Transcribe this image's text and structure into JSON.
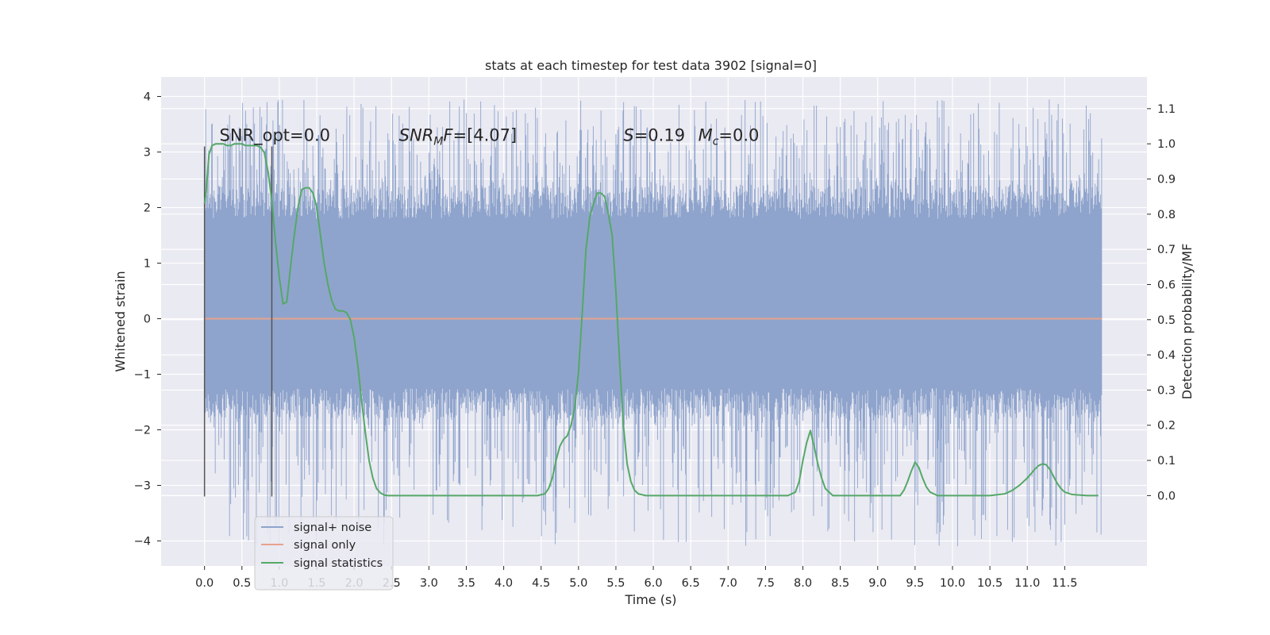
{
  "chart_data": {
    "type": "line",
    "title": "stats at each timestep for test data 3902 [signal=0]",
    "xlabel": "Time (s)",
    "ylabel": "Whitened strain",
    "ylabel_right": "Detection probability/MF",
    "xlim": [
      -0.58,
      12.6
    ],
    "ylim": [
      -4.45,
      4.35
    ],
    "ylim_right": [
      -0.2,
      1.19
    ],
    "x_ticks": [
      0.0,
      0.5,
      1.0,
      1.5,
      2.0,
      2.5,
      3.0,
      3.5,
      4.0,
      4.5,
      5.0,
      5.5,
      6.0,
      6.5,
      7.0,
      7.5,
      8.0,
      8.5,
      9.0,
      9.5,
      10.0,
      10.5,
      11.0,
      11.5
    ],
    "x_tick_labels": [
      "0.0",
      "0.5",
      "1.0",
      "1.5",
      "2.0",
      "2.5",
      "3.0",
      "3.5",
      "4.0",
      "4.5",
      "5.0",
      "5.5",
      "6.0",
      "6.5",
      "7.0",
      "7.5",
      "8.0",
      "8.5",
      "9.0",
      "9.5",
      "10.0",
      "10.5",
      "11.0",
      "11.5"
    ],
    "y_ticks": [
      -4,
      -3,
      -2,
      -1,
      0,
      1,
      2,
      3,
      4
    ],
    "y_tick_labels": [
      "−4",
      "−3",
      "−2",
      "−1",
      "0",
      "1",
      "2",
      "3",
      "4"
    ],
    "y_ticks_right": [
      0.0,
      0.1,
      0.2,
      0.3,
      0.4,
      0.5,
      0.6,
      0.7,
      0.8,
      0.9,
      1.0,
      1.1
    ],
    "y_tick_labels_right": [
      "0.0",
      "0.1",
      "0.2",
      "0.3",
      "0.4",
      "0.5",
      "0.6",
      "0.7",
      "0.8",
      "0.9",
      "1.0",
      "1.1"
    ],
    "grid": true,
    "legend_position": "lower-left",
    "colors": {
      "background": "#eaeaf2",
      "grid": "#ffffff",
      "noise": "#8fa4cc",
      "signal_only": "#e6a38d",
      "statistics": "#55a868",
      "marker_lines": "#555555"
    },
    "series": [
      {
        "name": "signal+ noise",
        "style": "noise-band",
        "x_range": [
          0.0,
          12.0
        ],
        "core_band": [
          -1.25,
          1.8
        ],
        "spike_range": [
          -4.1,
          3.95
        ]
      },
      {
        "name": "signal only",
        "x": [
          0.0,
          12.0
        ],
        "y": [
          0.0,
          0.0
        ]
      },
      {
        "name": "signal statistics",
        "axis": "right",
        "x": [
          0.0,
          0.02,
          0.06,
          0.1,
          0.15,
          0.2,
          0.25,
          0.3,
          0.35,
          0.4,
          0.45,
          0.5,
          0.55,
          0.6,
          0.65,
          0.7,
          0.75,
          0.8,
          0.85,
          0.9,
          0.95,
          1.0,
          1.05,
          1.1,
          1.15,
          1.2,
          1.25,
          1.3,
          1.35,
          1.4,
          1.45,
          1.5,
          1.55,
          1.6,
          1.65,
          1.7,
          1.75,
          1.8,
          1.85,
          1.9,
          1.95,
          2.0,
          2.05,
          2.1,
          2.15,
          2.2,
          2.25,
          2.3,
          2.35,
          2.4,
          2.45,
          2.5,
          2.6,
          2.8,
          3.0,
          3.5,
          4.0,
          4.3,
          4.45,
          4.55,
          4.6,
          4.65,
          4.7,
          4.75,
          4.8,
          4.85,
          4.9,
          4.95,
          5.0,
          5.05,
          5.1,
          5.15,
          5.2,
          5.25,
          5.3,
          5.35,
          5.4,
          5.45,
          5.5,
          5.55,
          5.6,
          5.65,
          5.7,
          5.75,
          5.8,
          5.9,
          6.0,
          6.2,
          6.5,
          7.0,
          7.5,
          7.8,
          7.9,
          7.95,
          8.0,
          8.05,
          8.1,
          8.15,
          8.2,
          8.25,
          8.3,
          8.4,
          8.6,
          9.0,
          9.3,
          9.35,
          9.4,
          9.45,
          9.5,
          9.55,
          9.6,
          9.65,
          9.7,
          9.8,
          10.0,
          10.5,
          10.7,
          10.8,
          10.9,
          11.0,
          11.05,
          11.1,
          11.15,
          11.2,
          11.25,
          11.3,
          11.35,
          11.4,
          11.45,
          11.5,
          11.6,
          11.8,
          11.95
        ],
        "y": [
          0.83,
          0.86,
          0.97,
          0.995,
          1.0,
          1.0,
          1.0,
          0.995,
          0.995,
          1.0,
          1.0,
          1.0,
          0.995,
          0.995,
          0.995,
          0.995,
          0.99,
          0.975,
          0.92,
          0.84,
          0.72,
          0.62,
          0.545,
          0.55,
          0.65,
          0.74,
          0.82,
          0.87,
          0.875,
          0.875,
          0.86,
          0.82,
          0.74,
          0.66,
          0.6,
          0.555,
          0.53,
          0.525,
          0.525,
          0.52,
          0.5,
          0.45,
          0.37,
          0.27,
          0.18,
          0.1,
          0.05,
          0.02,
          0.008,
          0.002,
          0.0,
          0.0,
          0.0,
          0.0,
          0.0,
          0.0,
          0.0,
          0.0,
          0.0,
          0.005,
          0.02,
          0.05,
          0.1,
          0.14,
          0.16,
          0.17,
          0.2,
          0.25,
          0.35,
          0.52,
          0.7,
          0.79,
          0.83,
          0.86,
          0.86,
          0.85,
          0.8,
          0.74,
          0.58,
          0.38,
          0.2,
          0.09,
          0.04,
          0.015,
          0.005,
          0.0,
          0.0,
          0.0,
          0.0,
          0.0,
          0.0,
          0.0,
          0.01,
          0.04,
          0.1,
          0.15,
          0.185,
          0.14,
          0.09,
          0.05,
          0.02,
          0.0,
          0.0,
          0.0,
          0.0,
          0.015,
          0.04,
          0.07,
          0.095,
          0.08,
          0.05,
          0.025,
          0.01,
          0.0,
          0.0,
          0.0,
          0.005,
          0.015,
          0.03,
          0.05,
          0.062,
          0.075,
          0.085,
          0.09,
          0.088,
          0.075,
          0.055,
          0.035,
          0.02,
          0.01,
          0.003,
          0.0,
          0.0
        ]
      }
    ],
    "vlines": [
      {
        "x": 0.0,
        "y_range": [
          -3.2,
          3.1
        ]
      },
      {
        "x": 0.9,
        "y_range": [
          -3.2,
          3.1
        ]
      }
    ],
    "annotations": [
      {
        "id": "snr-opt",
        "x": 0.2,
        "y": 3.2,
        "parts": [
          {
            "text": "SNR_opt=0.0",
            "italic": false
          }
        ]
      },
      {
        "id": "snr-mf",
        "x": 2.6,
        "y": 3.2,
        "parts": [
          {
            "text": "SNR",
            "italic": true
          },
          {
            "text": "M",
            "italic": true,
            "sub": true
          },
          {
            "text": "F",
            "italic": true
          },
          {
            "text": "=[4.07]",
            "italic": false
          }
        ]
      },
      {
        "id": "stat-s",
        "x": 5.6,
        "y": 3.2,
        "parts": [
          {
            "text": "S",
            "italic": true
          },
          {
            "text": "=0.19",
            "italic": false
          }
        ]
      },
      {
        "id": "chirp-mass",
        "x": 6.6,
        "y": 3.2,
        "parts": [
          {
            "text": "M",
            "italic": true
          },
          {
            "text": "c",
            "italic": true,
            "sub": true
          },
          {
            "text": "=0.0",
            "italic": false
          }
        ]
      }
    ]
  }
}
